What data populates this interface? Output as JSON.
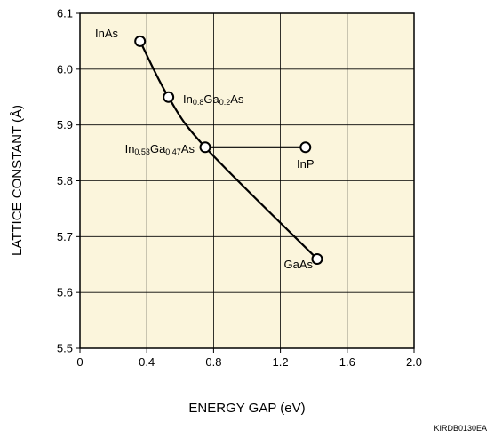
{
  "chart_data": {
    "type": "line",
    "xlabel": "ENERGY GAP (eV)",
    "ylabel": "LATTICE CONSTANT (Å)",
    "xlim": [
      0,
      2.0
    ],
    "ylim": [
      5.5,
      6.1
    ],
    "x_ticks": [
      "0",
      "0.4",
      "0.8",
      "1.2",
      "1.6",
      "2.0"
    ],
    "y_ticks": [
      "5.5",
      "5.6",
      "5.7",
      "5.8",
      "5.9",
      "6.0",
      "6.1"
    ],
    "grid": true,
    "background_color": "#fbf5dc",
    "line_color": "#000000",
    "series": [
      {
        "points": [
          {
            "label": "InAs",
            "x": 0.36,
            "y": 6.05
          },
          {
            "label": "In0.8Ga0.2As",
            "x": 0.53,
            "y": 5.95
          },
          {
            "label": "In0.53Ga0.47As",
            "x": 0.75,
            "y": 5.86
          },
          {
            "label": "GaAs",
            "x": 1.42,
            "y": 5.66
          }
        ]
      },
      {
        "points": [
          {
            "label": "In0.53Ga0.47As",
            "x": 0.75,
            "y": 5.86
          },
          {
            "label": "InP",
            "x": 1.35,
            "y": 5.86
          }
        ]
      }
    ],
    "labels": {
      "InAs": "InAs",
      "InGaAs08": {
        "a": "In",
        "s1": "0.8",
        "b": "Ga",
        "s2": "0.2",
        "c": "As"
      },
      "InGaAs053": {
        "a": "In",
        "s1": "0.53",
        "b": "Ga",
        "s2": "0.47",
        "c": "As"
      },
      "InP": "InP",
      "GaAs": "GaAs"
    }
  },
  "figure_code": "KIRDB0130EA"
}
